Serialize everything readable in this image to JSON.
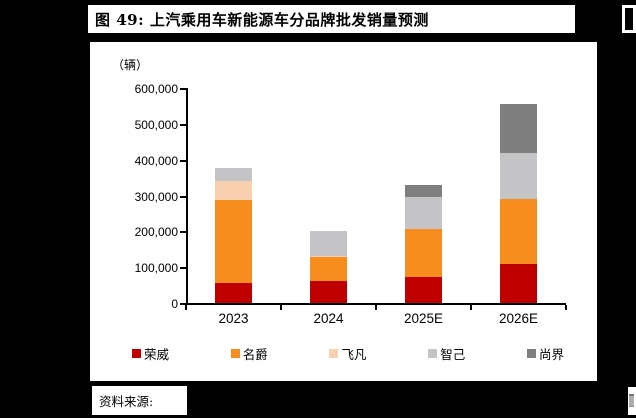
{
  "figure": {
    "title": "图 49: 上汽乘用车新能源车分品牌批发销量预测",
    "source_label": "资料来源:"
  },
  "chart_data": {
    "type": "bar",
    "stacked": true,
    "title": "上汽乘用车新能源车分品牌批发销量预测",
    "unit_label": "（辆）",
    "xlabel": "",
    "ylabel": "辆",
    "categories": [
      "2023",
      "2024",
      "2025E",
      "2026E"
    ],
    "series": [
      {
        "name": "荣威",
        "color": "#C00000",
        "values": [
          55000,
          60000,
          73000,
          108000
        ]
      },
      {
        "name": "名爵",
        "color": "#F78D1E",
        "values": [
          233000,
          68000,
          134000,
          182000
        ]
      },
      {
        "name": "飞凡",
        "color": "#FAD1B0",
        "values": [
          52000,
          4000,
          0,
          0
        ]
      },
      {
        "name": "智己",
        "color": "#C4C4C6",
        "values": [
          36000,
          68000,
          90000,
          130000
        ]
      },
      {
        "name": "尚界",
        "color": "#7F7F7F",
        "values": [
          0,
          0,
          33000,
          135000
        ]
      }
    ],
    "totals": [
      376000,
      200000,
      330000,
      555000
    ],
    "ylim": [
      0,
      600000
    ],
    "ytick_interval": 100000,
    "ytick_labels": [
      "0",
      "100,000",
      "200,000",
      "300,000",
      "400,000",
      "500,000",
      "600,000"
    ],
    "grid": false,
    "legend_position": "bottom"
  },
  "colors": {
    "page_background": "#000000",
    "panel_background": "#FFFFFF",
    "axis": "#000000",
    "rongwei_red": "#C00000",
    "mg_orange": "#F78D1E",
    "feifan_peach": "#FAD1B0",
    "zhiji_light_gray": "#C4C4C6",
    "shangjie_dark_gray": "#7F7F7F"
  }
}
